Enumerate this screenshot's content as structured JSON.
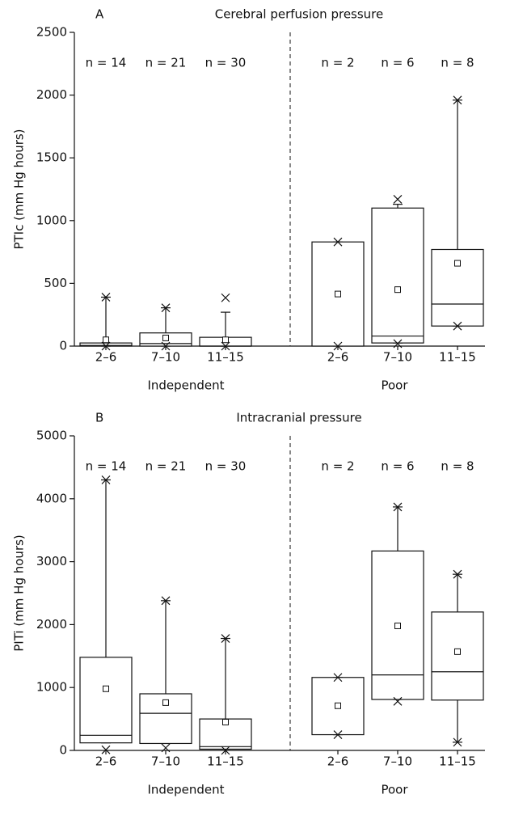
{
  "chart_data": [
    {
      "type": "box",
      "panel": "A",
      "title": "Cerebral perfusion pressure",
      "ylabel": "PTIc (mm Hg hours)",
      "categories": [
        "2–6",
        "7–10",
        "11–15",
        "2–6",
        "7–10",
        "11–15"
      ],
      "n_labels": [
        "n = 14",
        "n = 21",
        "n = 30",
        "n = 2",
        "n = 6",
        "n = 8"
      ],
      "groups": [
        "Independent",
        "Poor"
      ],
      "ylim": [
        0,
        2500
      ],
      "yticks": [
        0,
        500,
        1000,
        1500,
        2000,
        2500
      ],
      "boxes": [
        {
          "q1": 0,
          "median": 5,
          "q3": 25,
          "mean": 50,
          "whisker_low": 0,
          "whisker_high": 390,
          "min": 0,
          "max": 390
        },
        {
          "q1": 0,
          "median": 20,
          "q3": 105,
          "mean": 65,
          "whisker_low": 0,
          "whisker_high": 305,
          "min": 0,
          "max": 305
        },
        {
          "q1": 0,
          "median": 0,
          "q3": 70,
          "mean": 50,
          "whisker_low": 0,
          "whisker_high": 270,
          "min": 0,
          "max": 385
        },
        {
          "q1": 0,
          "median": null,
          "q3": 830,
          "mean": 415,
          "whisker_low": 0,
          "whisker_high": 830,
          "min": 0,
          "max": 830
        },
        {
          "q1": 25,
          "median": 80,
          "q3": 1100,
          "mean": 450,
          "whisker_low": 25,
          "whisker_high": 1130,
          "min": 20,
          "max": 1170
        },
        {
          "q1": 160,
          "median": 335,
          "q3": 770,
          "mean": 660,
          "whisker_low": 160,
          "whisker_high": 1960,
          "min": 160,
          "max": 1960
        }
      ]
    },
    {
      "type": "box",
      "panel": "B",
      "title": "Intracranial pressure",
      "ylabel": "PITi (mm Hg hours)",
      "categories": [
        "2–6",
        "7–10",
        "11–15",
        "2–6",
        "7–10",
        "11–15"
      ],
      "n_labels": [
        "n = 14",
        "n = 21",
        "n = 30",
        "n = 2",
        "n = 6",
        "n = 8"
      ],
      "groups": [
        "Independent",
        "Poor"
      ],
      "ylim": [
        0,
        5000
      ],
      "yticks": [
        0,
        1000,
        2000,
        3000,
        4000,
        5000
      ],
      "boxes": [
        {
          "q1": 120,
          "median": 240,
          "q3": 1480,
          "mean": 980,
          "whisker_low": 120,
          "whisker_high": 4300,
          "min": 10,
          "max": 4300
        },
        {
          "q1": 110,
          "median": 590,
          "q3": 900,
          "mean": 760,
          "whisker_low": 110,
          "whisker_high": 2380,
          "min": 40,
          "max": 2380
        },
        {
          "q1": 20,
          "median": 60,
          "q3": 500,
          "mean": 450,
          "whisker_low": 20,
          "whisker_high": 1780,
          "min": 0,
          "max": 1780
        },
        {
          "q1": 250,
          "median": null,
          "q3": 1160,
          "mean": 710,
          "whisker_low": 250,
          "whisker_high": 1160,
          "min": 250,
          "max": 1160
        },
        {
          "q1": 810,
          "median": 1200,
          "q3": 3170,
          "mean": 1980,
          "whisker_low": 810,
          "whisker_high": 3870,
          "min": 780,
          "max": 3870
        },
        {
          "q1": 800,
          "median": 1250,
          "q3": 2200,
          "mean": 1570,
          "whisker_low": 130,
          "whisker_high": 2800,
          "min": 130,
          "max": 2800
        }
      ]
    }
  ]
}
